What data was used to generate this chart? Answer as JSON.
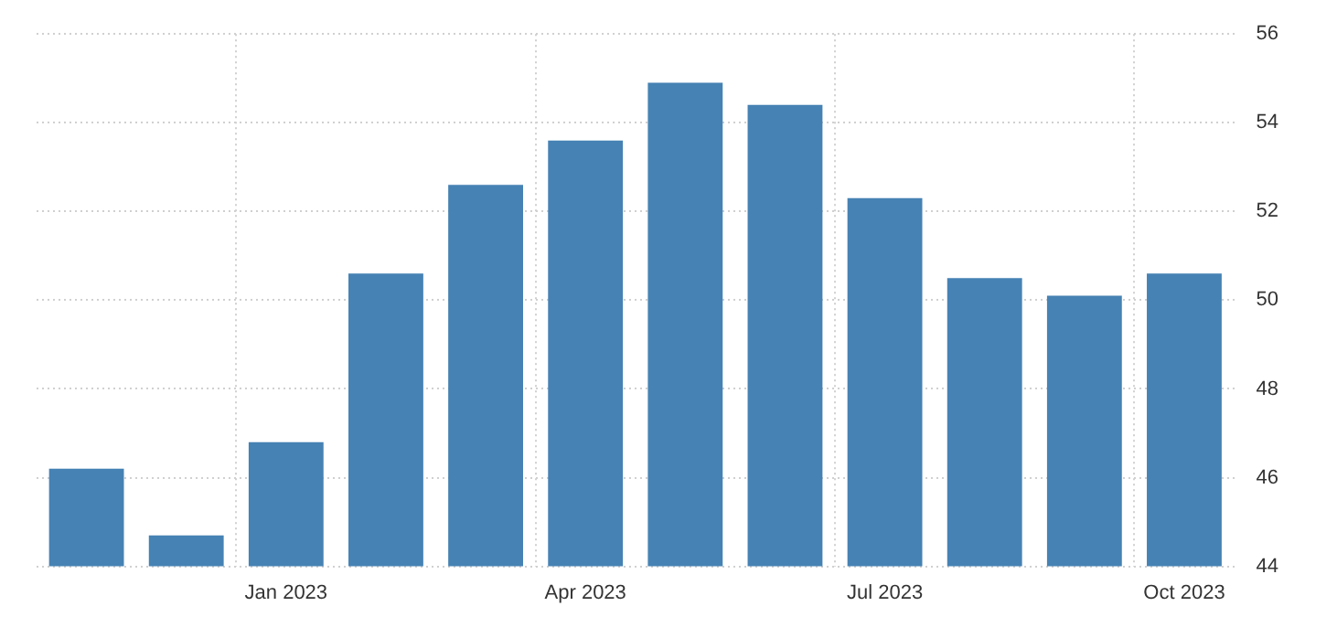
{
  "chart_data": {
    "type": "bar",
    "categories": [
      null,
      null,
      "Jan 2023",
      null,
      null,
      "Apr 2023",
      null,
      null,
      "Jul 2023",
      null,
      null,
      "Oct 2023"
    ],
    "values": [
      46.2,
      44.7,
      46.8,
      50.6,
      52.6,
      53.6,
      54.9,
      54.4,
      52.3,
      50.5,
      50.1,
      50.6
    ],
    "color": "#4682b4",
    "ylim": [
      44,
      56
    ],
    "yticks": [
      44,
      46,
      48,
      50,
      52,
      54,
      56
    ],
    "grid": true,
    "legend": false
  }
}
